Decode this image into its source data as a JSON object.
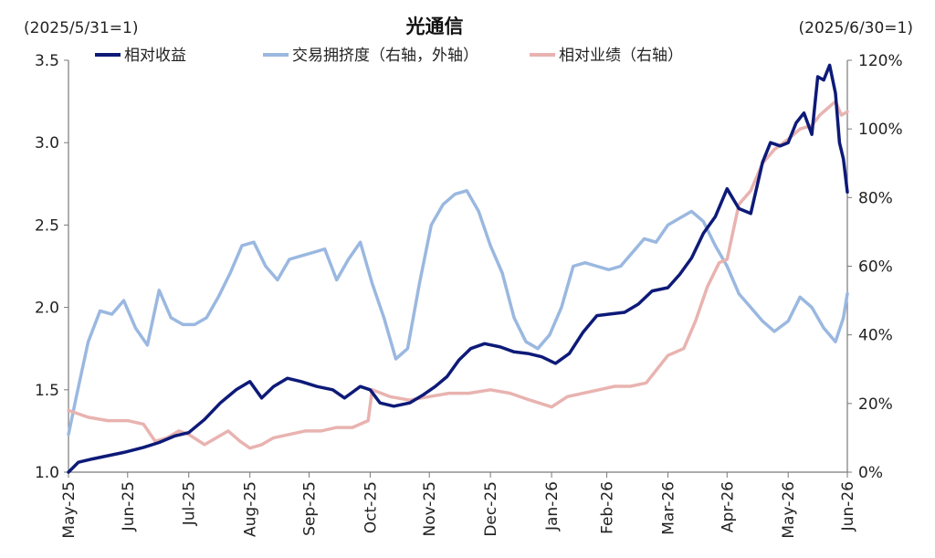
{
  "chart_data": {
    "type": "line",
    "title": "光通信",
    "left_axis_note": "(2025/5/31=1)",
    "right_axis_note": "(2025/6/30=1)",
    "legend_position": "top",
    "grid": false,
    "x_start": "2025-05-31",
    "x_end": "2026-06-30",
    "x_tick_labels": [
      "May-25",
      "Jun-25",
      "Jul-25",
      "Aug-25",
      "Sep-25",
      "Oct-25",
      "Nov-25",
      "Dec-25",
      "Jan-26",
      "Feb-26",
      "Mar-26",
      "Apr-26",
      "May-26",
      "Jun-26"
    ],
    "x_tick_dates": [
      "2025-05-31",
      "2025-06-30",
      "2025-07-31",
      "2025-08-31",
      "2025-09-30",
      "2025-10-31",
      "2025-11-30",
      "2025-12-31",
      "2026-01-31",
      "2026-02-28",
      "2026-03-31",
      "2026-04-30",
      "2026-05-31",
      "2026-06-30"
    ],
    "y_left": {
      "min": 1.0,
      "max": 3.5,
      "ticks": [
        "1.0",
        "1.5",
        "2.0",
        "2.5",
        "3.0",
        "3.5"
      ]
    },
    "y_right": {
      "min": 0,
      "max": 120,
      "ticks": [
        "0%",
        "20%",
        "40%",
        "60%",
        "80%",
        "100%",
        "120%"
      ]
    },
    "series": [
      {
        "name": "相对收益",
        "axis": "left",
        "color": "#0d1a78",
        "width": 3.5,
        "points": [
          [
            "2025-05-31",
            1.0
          ],
          [
            "2025-06-05",
            1.06
          ],
          [
            "2025-06-12",
            1.08
          ],
          [
            "2025-06-20",
            1.1
          ],
          [
            "2025-06-28",
            1.12
          ],
          [
            "2025-07-08",
            1.15
          ],
          [
            "2025-07-16",
            1.18
          ],
          [
            "2025-07-24",
            1.22
          ],
          [
            "2025-07-31",
            1.24
          ],
          [
            "2025-08-08",
            1.32
          ],
          [
            "2025-08-16",
            1.42
          ],
          [
            "2025-08-24",
            1.5
          ],
          [
            "2025-08-31",
            1.55
          ],
          [
            "2025-09-06",
            1.45
          ],
          [
            "2025-09-12",
            1.52
          ],
          [
            "2025-09-19",
            1.57
          ],
          [
            "2025-09-26",
            1.55
          ],
          [
            "2025-10-04",
            1.52
          ],
          [
            "2025-10-12",
            1.5
          ],
          [
            "2025-10-18",
            1.45
          ],
          [
            "2025-10-26",
            1.52
          ],
          [
            "2025-10-31",
            1.5
          ],
          [
            "2025-11-05",
            1.42
          ],
          [
            "2025-11-12",
            1.4
          ],
          [
            "2025-11-20",
            1.42
          ],
          [
            "2025-11-27",
            1.47
          ],
          [
            "2025-12-03",
            1.52
          ],
          [
            "2025-12-09",
            1.58
          ],
          [
            "2025-12-15",
            1.68
          ],
          [
            "2025-12-21",
            1.75
          ],
          [
            "2025-12-28",
            1.78
          ],
          [
            "2026-01-05",
            1.76
          ],
          [
            "2026-01-12",
            1.73
          ],
          [
            "2026-01-19",
            1.72
          ],
          [
            "2026-01-26",
            1.7
          ],
          [
            "2026-02-02",
            1.66
          ],
          [
            "2026-02-09",
            1.72
          ],
          [
            "2026-02-16",
            1.85
          ],
          [
            "2026-02-23",
            1.95
          ],
          [
            "2026-03-02",
            1.96
          ],
          [
            "2026-03-09",
            1.97
          ],
          [
            "2026-03-16",
            2.02
          ],
          [
            "2026-03-23",
            2.1
          ],
          [
            "2026-03-31",
            2.12
          ],
          [
            "2026-04-06",
            2.2
          ],
          [
            "2026-04-12",
            2.3
          ],
          [
            "2026-04-18",
            2.45
          ],
          [
            "2026-04-24",
            2.55
          ],
          [
            "2026-04-30",
            2.72
          ],
          [
            "2026-05-06",
            2.6
          ],
          [
            "2026-05-12",
            2.57
          ],
          [
            "2026-05-18",
            2.88
          ],
          [
            "2026-05-22",
            3.0
          ],
          [
            "2026-05-27",
            2.98
          ],
          [
            "2026-05-31",
            3.0
          ],
          [
            "2026-06-04",
            3.12
          ],
          [
            "2026-06-08",
            3.18
          ],
          [
            "2026-06-12",
            3.05
          ],
          [
            "2026-06-15",
            3.4
          ],
          [
            "2026-06-18",
            3.38
          ],
          [
            "2026-06-21",
            3.47
          ],
          [
            "2026-06-24",
            3.3
          ],
          [
            "2026-06-26",
            3.0
          ],
          [
            "2026-06-28",
            2.9
          ],
          [
            "2026-06-30",
            2.7
          ]
        ]
      },
      {
        "name": "交易拥挤度（右轴，外轴）",
        "axis": "right",
        "color": "#9ab8e0",
        "width": 3.5,
        "points": [
          [
            "2025-05-31",
            11
          ],
          [
            "2025-06-04",
            22
          ],
          [
            "2025-06-10",
            38
          ],
          [
            "2025-06-16",
            47
          ],
          [
            "2025-06-22",
            46
          ],
          [
            "2025-06-28",
            50
          ],
          [
            "2025-07-04",
            42
          ],
          [
            "2025-07-10",
            37
          ],
          [
            "2025-07-16",
            53
          ],
          [
            "2025-07-22",
            45
          ],
          [
            "2025-07-28",
            43
          ],
          [
            "2025-08-03",
            43
          ],
          [
            "2025-08-09",
            45
          ],
          [
            "2025-08-15",
            51
          ],
          [
            "2025-08-21",
            58
          ],
          [
            "2025-08-27",
            66
          ],
          [
            "2025-09-02",
            67
          ],
          [
            "2025-09-08",
            60
          ],
          [
            "2025-09-14",
            56
          ],
          [
            "2025-09-20",
            62
          ],
          [
            "2025-09-26",
            63
          ],
          [
            "2025-10-02",
            64
          ],
          [
            "2025-10-08",
            65
          ],
          [
            "2025-10-14",
            56
          ],
          [
            "2025-10-20",
            62
          ],
          [
            "2025-10-26",
            67
          ],
          [
            "2025-11-01",
            55
          ],
          [
            "2025-11-07",
            45
          ],
          [
            "2025-11-13",
            33
          ],
          [
            "2025-11-19",
            36
          ],
          [
            "2025-11-25",
            55
          ],
          [
            "2025-12-01",
            72
          ],
          [
            "2025-12-07",
            78
          ],
          [
            "2025-12-13",
            81
          ],
          [
            "2025-12-19",
            82
          ],
          [
            "2025-12-25",
            76
          ],
          [
            "2025-12-31",
            66
          ],
          [
            "2026-01-06",
            58
          ],
          [
            "2026-01-12",
            45
          ],
          [
            "2026-01-18",
            38
          ],
          [
            "2026-01-24",
            36
          ],
          [
            "2026-01-30",
            40
          ],
          [
            "2026-02-05",
            48
          ],
          [
            "2026-02-11",
            60
          ],
          [
            "2026-02-17",
            61
          ],
          [
            "2026-02-23",
            60
          ],
          [
            "2026-03-01",
            59
          ],
          [
            "2026-03-07",
            60
          ],
          [
            "2026-03-13",
            64
          ],
          [
            "2026-03-19",
            68
          ],
          [
            "2026-03-25",
            67
          ],
          [
            "2026-03-31",
            72
          ],
          [
            "2026-04-06",
            74
          ],
          [
            "2026-04-12",
            76
          ],
          [
            "2026-04-18",
            73
          ],
          [
            "2026-04-24",
            66
          ],
          [
            "2026-04-30",
            60
          ],
          [
            "2026-05-06",
            52
          ],
          [
            "2026-05-12",
            48
          ],
          [
            "2026-05-18",
            44
          ],
          [
            "2026-05-24",
            41
          ],
          [
            "2026-05-31",
            44
          ],
          [
            "2026-06-06",
            51
          ],
          [
            "2026-06-12",
            48
          ],
          [
            "2026-06-18",
            42
          ],
          [
            "2026-06-24",
            38
          ],
          [
            "2026-06-28",
            45
          ],
          [
            "2026-06-30",
            52
          ]
        ]
      },
      {
        "name": "相对业绩（右轴）",
        "axis": "right",
        "color": "#e8b3b0",
        "width": 3.5,
        "points": [
          [
            "2025-05-31",
            18
          ],
          [
            "2025-06-10",
            16
          ],
          [
            "2025-06-20",
            15
          ],
          [
            "2025-06-30",
            15
          ],
          [
            "2025-07-08",
            14
          ],
          [
            "2025-07-14",
            9
          ],
          [
            "2025-07-20",
            10
          ],
          [
            "2025-07-26",
            12
          ],
          [
            "2025-07-31",
            11
          ],
          [
            "2025-08-08",
            8
          ],
          [
            "2025-08-14",
            10
          ],
          [
            "2025-08-20",
            12
          ],
          [
            "2025-08-26",
            9
          ],
          [
            "2025-08-31",
            7
          ],
          [
            "2025-09-06",
            8
          ],
          [
            "2025-09-12",
            10
          ],
          [
            "2025-09-20",
            11
          ],
          [
            "2025-09-28",
            12
          ],
          [
            "2025-10-06",
            12
          ],
          [
            "2025-10-14",
            13
          ],
          [
            "2025-10-22",
            13
          ],
          [
            "2025-10-30",
            15
          ],
          [
            "2025-11-01",
            24
          ],
          [
            "2025-11-10",
            22
          ],
          [
            "2025-11-20",
            21
          ],
          [
            "2025-11-30",
            22
          ],
          [
            "2025-12-10",
            23
          ],
          [
            "2025-12-20",
            23
          ],
          [
            "2025-12-31",
            24
          ],
          [
            "2026-01-10",
            23
          ],
          [
            "2026-01-20",
            21
          ],
          [
            "2026-01-31",
            19
          ],
          [
            "2026-02-08",
            22
          ],
          [
            "2026-02-16",
            23
          ],
          [
            "2026-02-24",
            24
          ],
          [
            "2026-03-04",
            25
          ],
          [
            "2026-03-12",
            25
          ],
          [
            "2026-03-20",
            26
          ],
          [
            "2026-03-31",
            34
          ],
          [
            "2026-04-08",
            36
          ],
          [
            "2026-04-14",
            44
          ],
          [
            "2026-04-20",
            54
          ],
          [
            "2026-04-26",
            61
          ],
          [
            "2026-04-30",
            62
          ],
          [
            "2026-05-06",
            78
          ],
          [
            "2026-05-12",
            82
          ],
          [
            "2026-05-18",
            90
          ],
          [
            "2026-05-24",
            94
          ],
          [
            "2026-05-31",
            97
          ],
          [
            "2026-06-06",
            100
          ],
          [
            "2026-06-12",
            101
          ],
          [
            "2026-06-16",
            104
          ],
          [
            "2026-06-20",
            106
          ],
          [
            "2026-06-24",
            108
          ],
          [
            "2026-06-27",
            104
          ],
          [
            "2026-06-30",
            105
          ]
        ]
      }
    ]
  }
}
